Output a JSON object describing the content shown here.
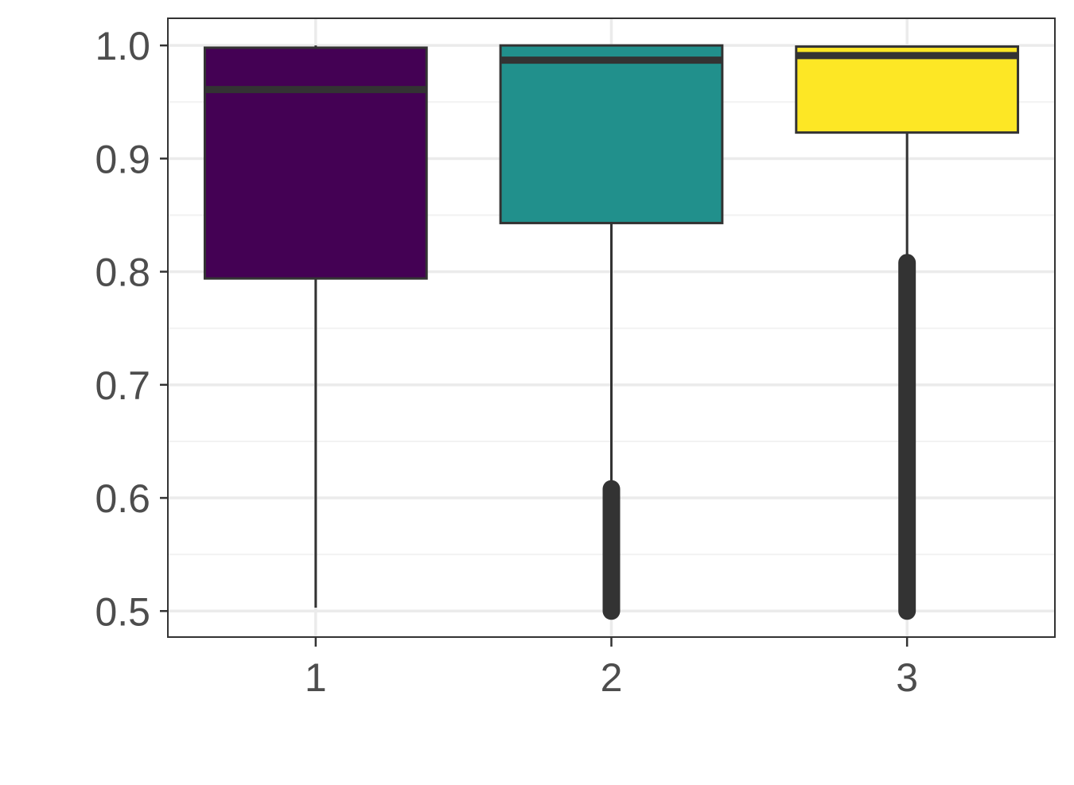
{
  "chart_data": {
    "type": "boxplot",
    "title": "",
    "xlabel": "",
    "ylabel": "",
    "ylim": [
      0.477,
      1.024
    ],
    "yticks": [
      "0.5",
      "0.6",
      "0.7",
      "0.8",
      "0.9",
      "1.0"
    ],
    "grid": true,
    "categories": [
      "1",
      "2",
      "3"
    ],
    "boxes": [
      {
        "category": "1",
        "color": "#440154",
        "whisker_low": 0.503,
        "q1": 0.794,
        "median": 0.961,
        "q3": 0.998,
        "whisker_high": 1.0,
        "outliers_range": null
      },
      {
        "category": "2",
        "color": "#21908C",
        "whisker_low": 0.608,
        "q1": 0.843,
        "median": 0.987,
        "q3": 1.0,
        "whisker_high": 1.0,
        "outliers_range": [
          0.5,
          0.608
        ]
      },
      {
        "category": "3",
        "color": "#FDE725",
        "whisker_low": 0.808,
        "q1": 0.923,
        "median": 0.991,
        "q3": 0.999,
        "whisker_high": 0.999,
        "outliers_range": [
          0.5,
          0.808
        ]
      }
    ]
  }
}
